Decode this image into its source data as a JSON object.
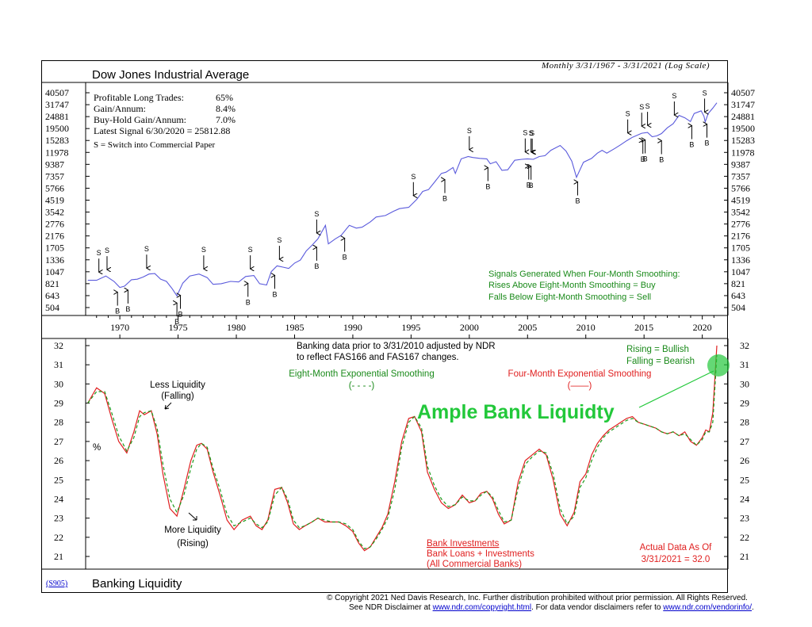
{
  "top_panel": {
    "title": "Dow Jones Industrial Average",
    "subtitle": "Monthly 3/31/1967 - 3/31/2021 (Log Scale)",
    "stats": [
      {
        "label": "Profitable Long Trades:",
        "value": "65%"
      },
      {
        "label": "Gain/Annum:",
        "value": "8.4%"
      },
      {
        "label": "Buy-Hold Gain/Annum:",
        "value": "7.0%"
      }
    ],
    "latest_signal": "Latest Signal 6/30/2020 = 25812.88",
    "switch_note": "S =  Switch into Commercial Paper",
    "signal_notes": [
      "Signals Generated When Four-Month Smoothing:",
      "Rises Above Eight-Month Smoothing = Buy",
      "Falls Below Eight-Month Smoothing = Sell"
    ]
  },
  "bottom_panel": {
    "title": "Banking Liquidity",
    "chart_code": "(S905)",
    "note_adjusted": [
      "Banking data prior to 3/31/2010 adjusted by NDR",
      "to reflect FAS166 and FAS167 changes."
    ],
    "rising_falling": [
      "Rising = Bullish",
      "Falling = Bearish"
    ],
    "less_liquidity": [
      "Less Liquidity",
      "(Falling)"
    ],
    "more_liquidity": [
      "More Liquidity",
      "(Rising)"
    ],
    "percent_label": "%",
    "eight_month_label": [
      "Eight-Month Exponential Smoothing",
      "(- - - -)"
    ],
    "four_month_label": [
      "Four-Month Exponential Smoothing",
      "(——)"
    ],
    "callout": "Ample Bank Liquidty",
    "ratio_label": [
      "Bank Investments",
      "Bank Loans + Investments",
      "(All Commercial Banks)"
    ],
    "actual_data": [
      "Actual Data As Of",
      "3/31/2021 = 32.0"
    ]
  },
  "colors": {
    "dow_line": "#5a5adc",
    "four_month": "#e02020",
    "eight_month": "#1a9a1a",
    "callout_green": "#22c83a",
    "notes_green": "#1a8a1a",
    "notes_red": "#e02020"
  },
  "copyright": {
    "line1": "© Copyright 2021 Ned Davis Research, Inc.  Further distribution prohibited without prior permission.  All Rights Reserved.",
    "line2_pre": "See NDR Disclaimer at ",
    "link1": "www.ndr.com/copyright.html",
    "line2_mid": ". For data vendor disclaimers refer to ",
    "link2": "www.ndr.com/vendorinfo/",
    "line2_post": "."
  },
  "chart_data": [
    {
      "type": "line",
      "title": "Dow Jones Industrial Average",
      "scale": "log",
      "y_ticks": [
        504,
        643,
        821,
        1047,
        1336,
        1705,
        2176,
        2776,
        3542,
        4519,
        5766,
        7357,
        9387,
        11978,
        15283,
        19500,
        24881,
        31747,
        40507
      ],
      "ylim": [
        455,
        41500
      ],
      "xlim": [
        1967.2,
        2021.25
      ],
      "x_ticks": [
        1970,
        1975,
        1980,
        1985,
        1990,
        1995,
        2000,
        2005,
        2010,
        2015,
        2020
      ],
      "series": [
        {
          "x": [
            1967.25,
            1968,
            1968.8,
            1969.5,
            1970.0,
            1970.4,
            1971.0,
            1971.5,
            1972.0,
            1972.5,
            1973.0,
            1973.5,
            1974.0,
            1974.5,
            1974.9,
            1975.4,
            1976.0,
            1976.8,
            1977.5,
            1978.0,
            1978.7,
            1979.5,
            1980.2,
            1980.8,
            1981.5,
            1982.0,
            1982.6,
            1983.0,
            1983.5,
            1984.0,
            1984.5,
            1985.0,
            1985.5,
            1986.0,
            1986.5,
            1987.0,
            1987.65,
            1987.9,
            1988.5,
            1989.0,
            1989.7,
            1990.3,
            1990.8,
            1991.5,
            1992.0,
            1992.8,
            1993.5,
            1994.0,
            1994.8,
            1995.5,
            1996.0,
            1996.5,
            1997.0,
            1997.6,
            1998.0,
            1998.6,
            1998.8,
            1999.3,
            1999.9,
            2000.3,
            2000.9,
            2001.5,
            2001.8,
            2002.3,
            2002.8,
            2003.3,
            2003.9,
            2004.5,
            2005.0,
            2005.5,
            2006.0,
            2006.5,
            2007.0,
            2007.8,
            2008.3,
            2008.8,
            2009.2,
            2009.8,
            2010.5,
            2011.0,
            2011.4,
            2011.8,
            2012.5,
            2013.0,
            2013.5,
            2014.0,
            2014.8,
            2015.3,
            2015.7,
            2016.1,
            2016.5,
            2017.0,
            2017.5,
            2018.0,
            2018.5,
            2018.98,
            2019.3,
            2019.9,
            2020.15,
            2020.25,
            2020.5,
            2020.9,
            2021.25
          ],
          "values": [
            880,
            880,
            960,
            860,
            760,
            780,
            890,
            900,
            940,
            1000,
            1010,
            900,
            860,
            740,
            640,
            830,
            960,
            1000,
            930,
            810,
            820,
            860,
            850,
            950,
            970,
            820,
            800,
            1050,
            1180,
            1150,
            1120,
            1250,
            1330,
            1600,
            1800,
            2050,
            2700,
            1850,
            2050,
            2200,
            2700,
            2550,
            2600,
            2900,
            3200,
            3300,
            3600,
            3800,
            3900,
            4600,
            5400,
            5600,
            6500,
            7800,
            8000,
            8800,
            7800,
            10500,
            11000,
            10800,
            10600,
            10500,
            9500,
            9900,
            8300,
            8400,
            10200,
            10400,
            10500,
            10400,
            11000,
            11200,
            12500,
            13800,
            12300,
            10000,
            7200,
            9800,
            10600,
            11800,
            12500,
            11800,
            13000,
            14000,
            15200,
            16300,
            17700,
            18000,
            16500,
            16800,
            17600,
            19800,
            21500,
            25500,
            24300,
            22500,
            26500,
            28000,
            25000,
            22300,
            26400,
            29600,
            33000
          ]
        }
      ],
      "signals": {
        "sell": [
          1968.2,
          1968.9,
          1972.3,
          1977.2,
          1981.2,
          1983.7,
          1986.9,
          1995.2,
          2000.0,
          2004.8,
          2005.3,
          2005.4,
          2013.6,
          2014.8,
          2015.3,
          2017.6,
          2020.2
        ],
        "buy": [
          1969.8,
          1970.7,
          1974.9,
          1975.2,
          1981.0,
          1983.3,
          1986.9,
          1989.3,
          1997.9,
          2001.6,
          2005.1,
          2005.3,
          2009.3,
          2014.9,
          2015.1,
          2016.5,
          2019.1,
          2020.4
        ]
      }
    },
    {
      "type": "line",
      "title": "Banking Liquidity",
      "ylim": [
        20.5,
        32.3
      ],
      "y_ticks": [
        21,
        22,
        23,
        24,
        25,
        26,
        27,
        28,
        29,
        30,
        31,
        32
      ],
      "xlim": [
        1967.2,
        2021.25
      ],
      "series": [
        {
          "name": "Four-Month Exponential Smoothing",
          "x": [
            1967.25,
            1968.0,
            1968.7,
            1969.3,
            1969.9,
            1970.6,
            1971.2,
            1971.7,
            1972.1,
            1972.7,
            1973.2,
            1973.7,
            1974.3,
            1974.9,
            1975.5,
            1976.1,
            1976.6,
            1977.0,
            1977.5,
            1978.0,
            1978.6,
            1979.2,
            1979.8,
            1980.5,
            1981.2,
            1981.7,
            1982.2,
            1982.7,
            1983.3,
            1983.9,
            1984.4,
            1984.9,
            1985.4,
            1985.9,
            1986.5,
            1987.0,
            1987.6,
            1988.2,
            1988.8,
            1989.4,
            1990.0,
            1990.5,
            1991.0,
            1991.5,
            1992.0,
            1992.5,
            1993.0,
            1993.6,
            1994.2,
            1994.8,
            1995.3,
            1995.9,
            1996.4,
            1997.0,
            1997.6,
            1998.2,
            1998.8,
            1999.4,
            2000.0,
            2000.5,
            2001.0,
            2001.5,
            2002.0,
            2002.5,
            2003.0,
            2003.6,
            2004.2,
            2004.8,
            2005.4,
            2006.0,
            2006.6,
            2007.2,
            2007.8,
            2008.4,
            2009.0,
            2009.5,
            2010.0,
            2010.5,
            2011.0,
            2011.5,
            2012.0,
            2012.5,
            2013.0,
            2013.5,
            2014.0,
            2014.5,
            2015.0,
            2015.5,
            2016.0,
            2016.5,
            2017.0,
            2017.5,
            2018.0,
            2018.5,
            2019.0,
            2019.5,
            2020.0,
            2020.3,
            2020.6,
            2020.9,
            2021.25
          ],
          "values": [
            29.0,
            29.8,
            29.5,
            28.2,
            27.0,
            26.4,
            27.5,
            28.6,
            28.4,
            28.6,
            27.4,
            25.3,
            23.5,
            23.1,
            24.5,
            26.0,
            26.8,
            26.9,
            26.6,
            25.4,
            24.2,
            22.9,
            22.4,
            22.9,
            23.1,
            22.6,
            22.4,
            22.9,
            24.5,
            24.6,
            23.8,
            22.7,
            22.4,
            22.6,
            22.8,
            23.0,
            22.8,
            22.8,
            22.8,
            22.6,
            22.3,
            21.7,
            21.3,
            21.5,
            22.0,
            22.5,
            23.2,
            24.9,
            27.0,
            28.2,
            28.3,
            27.5,
            25.4,
            24.5,
            23.8,
            23.5,
            23.7,
            24.2,
            23.8,
            23.9,
            24.3,
            24.4,
            24.0,
            23.2,
            22.7,
            22.9,
            24.9,
            26.0,
            26.3,
            26.6,
            26.3,
            25.0,
            23.2,
            22.6,
            23.3,
            24.9,
            25.3,
            26.3,
            26.9,
            27.3,
            27.6,
            27.8,
            28.0,
            28.2,
            28.3,
            28.0,
            27.9,
            27.8,
            27.7,
            27.5,
            27.4,
            27.5,
            27.3,
            27.5,
            27.0,
            26.8,
            27.2,
            27.6,
            27.5,
            28.5,
            32.0
          ]
        },
        {
          "name": "Eight-Month Exponential Smoothing",
          "x": [
            1967.25,
            1968.0,
            1968.7,
            1969.3,
            1969.9,
            1970.6,
            1971.2,
            1971.7,
            1972.1,
            1972.7,
            1973.2,
            1973.7,
            1974.3,
            1974.9,
            1975.5,
            1976.1,
            1976.6,
            1977.0,
            1977.5,
            1978.0,
            1978.6,
            1979.2,
            1979.8,
            1980.5,
            1981.2,
            1981.7,
            1982.2,
            1982.7,
            1983.3,
            1983.9,
            1984.4,
            1984.9,
            1985.4,
            1985.9,
            1986.5,
            1987.0,
            1987.6,
            1988.2,
            1988.8,
            1989.4,
            1990.0,
            1990.5,
            1991.0,
            1991.5,
            1992.0,
            1992.5,
            1993.0,
            1993.6,
            1994.2,
            1994.8,
            1995.3,
            1995.9,
            1996.4,
            1997.0,
            1997.6,
            1998.2,
            1998.8,
            1999.4,
            2000.0,
            2000.5,
            2001.0,
            2001.5,
            2002.0,
            2002.5,
            2003.0,
            2003.6,
            2004.2,
            2004.8,
            2005.4,
            2006.0,
            2006.6,
            2007.2,
            2007.8,
            2008.4,
            2009.0,
            2009.5,
            2010.0,
            2010.5,
            2011.0,
            2011.5,
            2012.0,
            2012.5,
            2013.0,
            2013.5,
            2014.0,
            2014.5,
            2015.0,
            2015.5,
            2016.0,
            2016.5,
            2017.0,
            2017.5,
            2018.0,
            2018.5,
            2019.0,
            2019.5,
            2020.0,
            2020.3,
            2020.6,
            2020.9,
            2021.25
          ],
          "values": [
            29.0,
            29.6,
            29.6,
            28.5,
            27.3,
            26.5,
            27.2,
            28.3,
            28.5,
            28.6,
            27.7,
            25.8,
            24.0,
            23.3,
            24.2,
            25.6,
            26.6,
            26.9,
            26.7,
            25.6,
            24.5,
            23.2,
            22.6,
            22.8,
            23.0,
            22.7,
            22.5,
            22.8,
            24.2,
            24.6,
            24.0,
            22.9,
            22.5,
            22.6,
            22.8,
            23.0,
            22.9,
            22.8,
            22.8,
            22.7,
            22.4,
            21.8,
            21.4,
            21.5,
            21.9,
            22.4,
            23.0,
            24.5,
            26.7,
            28.0,
            28.3,
            27.7,
            25.7,
            24.7,
            24.0,
            23.6,
            23.7,
            24.1,
            23.9,
            23.9,
            24.2,
            24.4,
            24.1,
            23.4,
            22.8,
            22.9,
            24.6,
            25.8,
            26.2,
            26.5,
            26.4,
            25.3,
            23.5,
            22.7,
            23.1,
            24.6,
            25.1,
            26.0,
            26.7,
            27.2,
            27.5,
            27.7,
            27.9,
            28.1,
            28.2,
            28.0,
            27.9,
            27.8,
            27.7,
            27.5,
            27.4,
            27.5,
            27.3,
            27.4,
            27.1,
            26.8,
            27.1,
            27.5,
            27.5,
            28.0,
            31.5
          ]
        }
      ]
    }
  ]
}
